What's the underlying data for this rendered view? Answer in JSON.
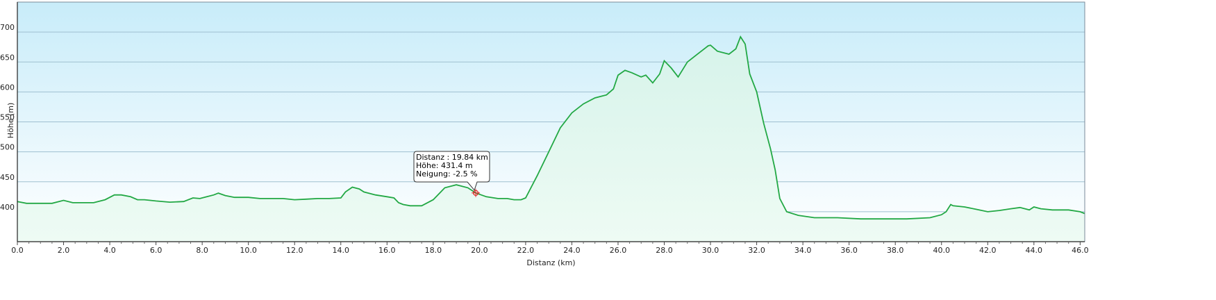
{
  "chart_data": {
    "type": "area",
    "title": "",
    "xlabel": "Distanz  (km)",
    "ylabel": "Höhe (m)",
    "xlim": [
      0,
      46.2
    ],
    "ylim": [
      350,
      750
    ],
    "x_ticks": [
      "0.0",
      "2.0",
      "4.0",
      "6.0",
      "8.0",
      "10.0",
      "12.0",
      "14.0",
      "16.0",
      "18.0",
      "20.0",
      "22.0",
      "24.0",
      "26.0",
      "28.0",
      "30.0",
      "32.0",
      "34.0",
      "36.0",
      "38.0",
      "40.0",
      "42.0",
      "44.0",
      "46.0"
    ],
    "y_ticks": [
      "400",
      "450",
      "500",
      "550",
      "600",
      "650",
      "700"
    ],
    "grid": true,
    "colors": {
      "line": "#22a844",
      "fill_top": "#cfeeff",
      "fill_bottom": "#eafaf2",
      "plot_top": "#c8ecf9",
      "plot_bottom": "#ffffff",
      "grid": "#9fbfd0",
      "marker": "#e02020"
    },
    "series": [
      {
        "x": [
          0,
          0.4,
          1,
          1.5,
          2,
          2.4,
          2.8,
          3.3,
          3.8,
          4.2,
          4.5,
          4.9,
          5.2,
          5.5,
          6,
          6.6,
          7.2,
          7.6,
          7.9,
          8.2,
          8.5,
          8.7,
          9,
          9.4,
          9.6,
          10,
          10.5,
          11,
          11.5,
          12,
          12.5,
          13,
          13.5,
          14,
          14.2,
          14.5,
          14.8,
          15,
          15.5,
          16,
          16.3,
          16.5,
          16.7,
          17,
          17.5,
          17.8,
          18,
          18.2,
          18.5,
          19,
          19.5,
          19.84,
          20.3,
          20.8,
          21.2,
          21.5,
          21.8,
          22,
          22.5,
          23,
          23.5,
          24,
          24.5,
          25,
          25.3,
          25.5,
          25.8,
          26,
          26.3,
          26.6,
          27,
          27.2,
          27.5,
          27.8,
          28,
          28.3,
          28.6,
          29,
          29.5,
          29.9,
          30,
          30.3,
          30.8,
          31.1,
          31.3,
          31.5,
          31.7,
          32,
          32.3,
          32.6,
          32.8,
          33,
          33.3,
          33.8,
          34.5,
          35.5,
          36.5,
          37.5,
          38.5,
          39.5,
          40,
          40.2,
          40.4,
          40.5,
          41,
          41.5,
          42,
          42.5,
          43,
          43.4,
          43.8,
          44,
          44.3,
          44.8,
          45.5,
          46,
          46.2
        ],
        "y": [
          417,
          414,
          414,
          414,
          419,
          415,
          415,
          415,
          420,
          428,
          428,
          425,
          420,
          420,
          418,
          416,
          417,
          423,
          422,
          425,
          428,
          431,
          427,
          424,
          424,
          424,
          422,
          422,
          422,
          420,
          421,
          422,
          422,
          423,
          433,
          441,
          438,
          433,
          428,
          425,
          423,
          415,
          412,
          410,
          410,
          416,
          420,
          428,
          440,
          445,
          440,
          431.4,
          425,
          422,
          422,
          420,
          420,
          423,
          460,
          500,
          540,
          565,
          580,
          590,
          593,
          595,
          605,
          628,
          636,
          632,
          625,
          628,
          615,
          630,
          652,
          640,
          625,
          650,
          665,
          677,
          678,
          668,
          663,
          672,
          692,
          680,
          630,
          600,
          548,
          505,
          470,
          422,
          400,
          394,
          390,
          390,
          388,
          388,
          388,
          390,
          395,
          400,
          412,
          410,
          408,
          404,
          400,
          402,
          405,
          407,
          403,
          408,
          405,
          403,
          403,
          400,
          397
        ]
      }
    ],
    "tooltip": {
      "x": 19.84,
      "y": 431.4,
      "lines": [
        "Distanz : 19.84 km",
        "Höhe: 431.4 m",
        "Neigung: -2.5 %"
      ]
    }
  }
}
